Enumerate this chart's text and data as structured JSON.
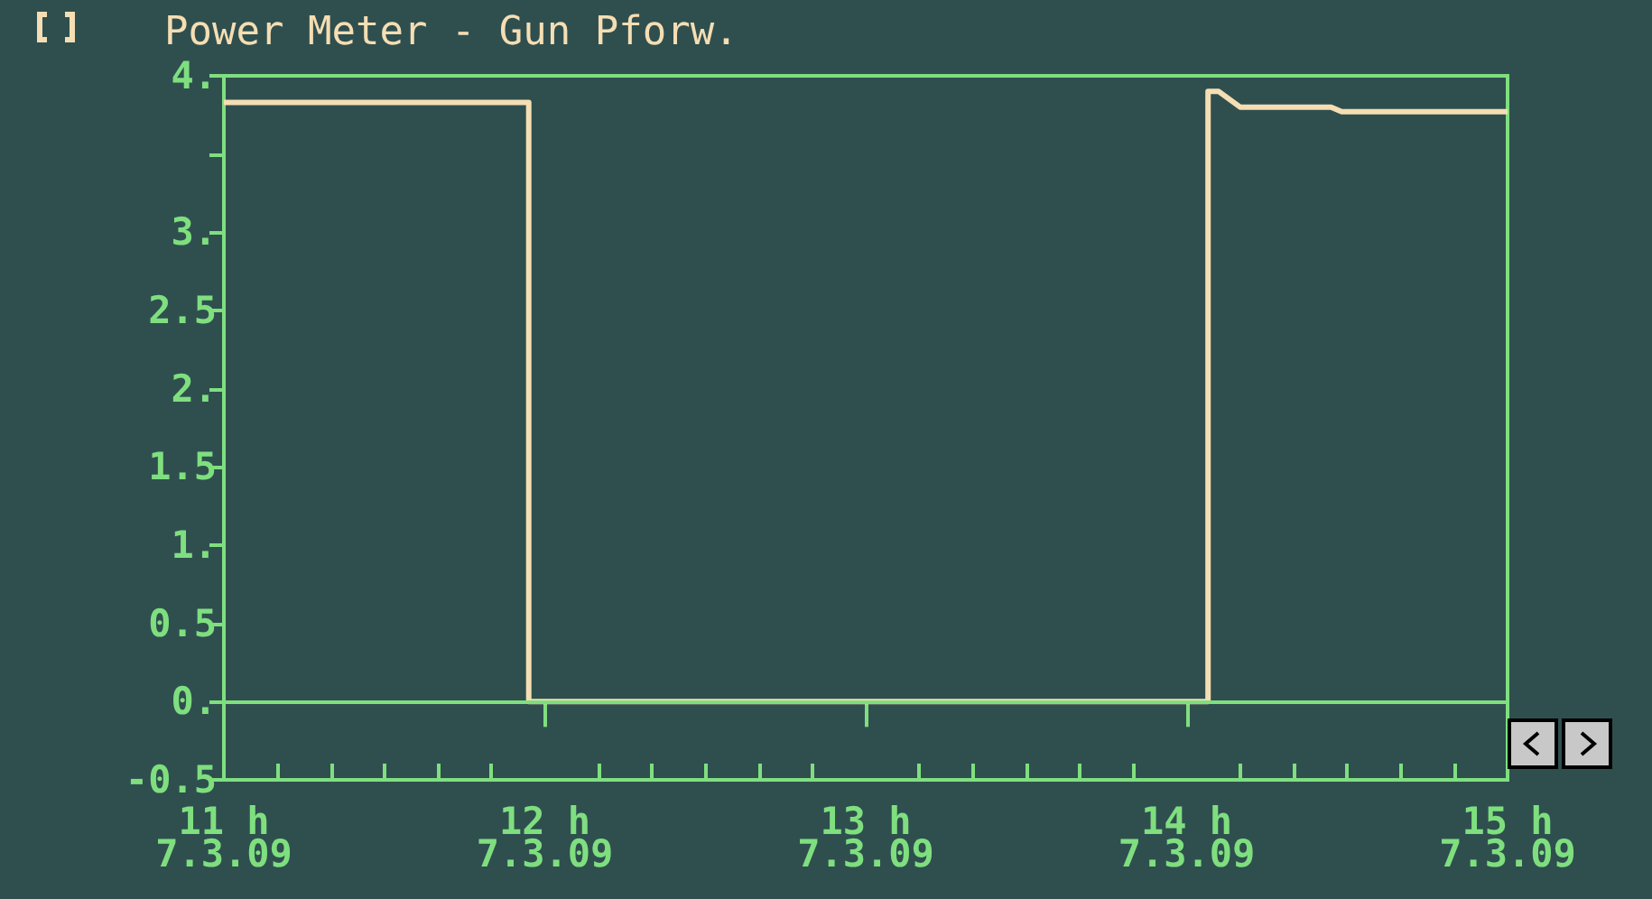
{
  "chart_data": {
    "type": "line",
    "title": "Power Meter - Gun Pforw.",
    "x": [
      "--03-07T11:00",
      "--03-07T11:57",
      "--03-07T11:57",
      "--03-07T14:04",
      "--03-07T14:04",
      "--03-07T14:06",
      "--03-07T14:10",
      "--03-07T14:27",
      "--03-07T14:29",
      "--03-07T15:00"
    ],
    "series": [
      {
        "color": "#f5deb3",
        "values": [
          3.83,
          3.83,
          0,
          0,
          3.9,
          3.9,
          3.8,
          3.8,
          3.77,
          3.77
        ]
      }
    ],
    "xlim": [
      "--03-07T11:00",
      "--03-07T15:00"
    ],
    "xticks": [
      {
        "value": "--03-07T11:00",
        "label": "11 h\n7.3.09"
      },
      {
        "value": "--03-07T11:10",
        "label": null
      },
      {
        "value": "--03-07T11:20",
        "label": null
      },
      {
        "value": "--03-07T11:30",
        "label": null
      },
      {
        "value": "--03-07T11:40",
        "label": null
      },
      {
        "value": "--03-07T11:50",
        "label": null
      },
      {
        "value": "--03-07T12:00",
        "label": "12 h\n7.3.09"
      },
      {
        "value": "--03-07T12:10",
        "label": null
      },
      {
        "value": "--03-07T12:20",
        "label": null
      },
      {
        "value": "--03-07T12:30",
        "label": null
      },
      {
        "value": "--03-07T12:40",
        "label": null
      },
      {
        "value": "--03-07T12:50",
        "label": null
      },
      {
        "value": "--03-07T13:00",
        "label": "13 h\n7.3.09"
      },
      {
        "value": "--03-07T13:10",
        "label": null
      },
      {
        "value": "--03-07T13:20",
        "label": null
      },
      {
        "value": "--03-07T13:30",
        "label": null
      },
      {
        "value": "--03-07T13:40",
        "label": null
      },
      {
        "value": "--03-07T13:50",
        "label": null
      },
      {
        "value": "--03-07T14:00",
        "label": "14 h\n7.3.09"
      },
      {
        "value": "--03-07T14:10",
        "label": null
      },
      {
        "value": "--03-07T14:20",
        "label": null
      },
      {
        "value": "--03-07T14:30",
        "label": null
      },
      {
        "value": "--03-07T14:40",
        "label": null
      },
      {
        "value": "--03-07T14:50",
        "label": null
      },
      {
        "value": "--03-07T15:00",
        "label": "15 h\n7.3.09"
      }
    ],
    "ylim": [
      -0.5,
      4
    ],
    "yticks": [
      {
        "value": -0.5,
        "label": "-0.5"
      },
      {
        "value": 0,
        "label": "0."
      },
      {
        "value": 0.5,
        "label": "0.5"
      },
      {
        "value": 1,
        "label": "1."
      },
      {
        "value": 1.5,
        "label": "1.5"
      },
      {
        "value": 2,
        "label": "2."
      },
      {
        "value": 2.5,
        "label": "2.5"
      },
      {
        "value": 3,
        "label": "3."
      },
      {
        "value": 3.5,
        "label": null
      },
      {
        "value": 4,
        "label": "4."
      }
    ],
    "ref_lines": [
      {
        "axis": "y",
        "value": 0,
        "color": "#7fdf7f"
      }
    ],
    "marker": "none",
    "line_style": "solid",
    "grid": false
  }
}
